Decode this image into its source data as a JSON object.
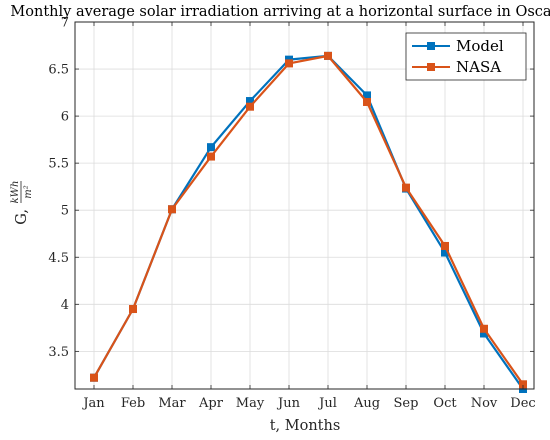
{
  "chart_data": {
    "type": "line",
    "title": "Monthly average solar irradiation arriving at a horizontal surface in Osca",
    "xlabel": "t, Months",
    "ylabel_prefix": "G,",
    "ylabel_unit_numerator": "kWh",
    "ylabel_unit_denominator": "m²",
    "categories": [
      "Jan",
      "Feb",
      "Mar",
      "Apr",
      "May",
      "Jun",
      "Jul",
      "Aug",
      "Sep",
      "Oct",
      "Nov",
      "Dec"
    ],
    "ylim": [
      3.1,
      7
    ],
    "yticks": [
      3.5,
      4,
      4.5,
      5,
      5.5,
      6,
      6.5,
      7
    ],
    "ytick_labels": [
      "3.5",
      "4",
      "4.5",
      "5",
      "5.5",
      "6",
      "6.5",
      "7"
    ],
    "grid": true,
    "legend_position": "top-right",
    "series": [
      {
        "name": "Model",
        "color": "#0072BD",
        "values": [
          3.22,
          3.95,
          5.01,
          5.67,
          6.16,
          6.6,
          6.64,
          6.22,
          5.23,
          4.55,
          3.69,
          3.1
        ]
      },
      {
        "name": "NASA",
        "color": "#D95319",
        "values": [
          3.22,
          3.95,
          5.01,
          5.57,
          6.1,
          6.56,
          6.64,
          6.15,
          5.24,
          4.62,
          3.74,
          3.15
        ]
      }
    ]
  }
}
